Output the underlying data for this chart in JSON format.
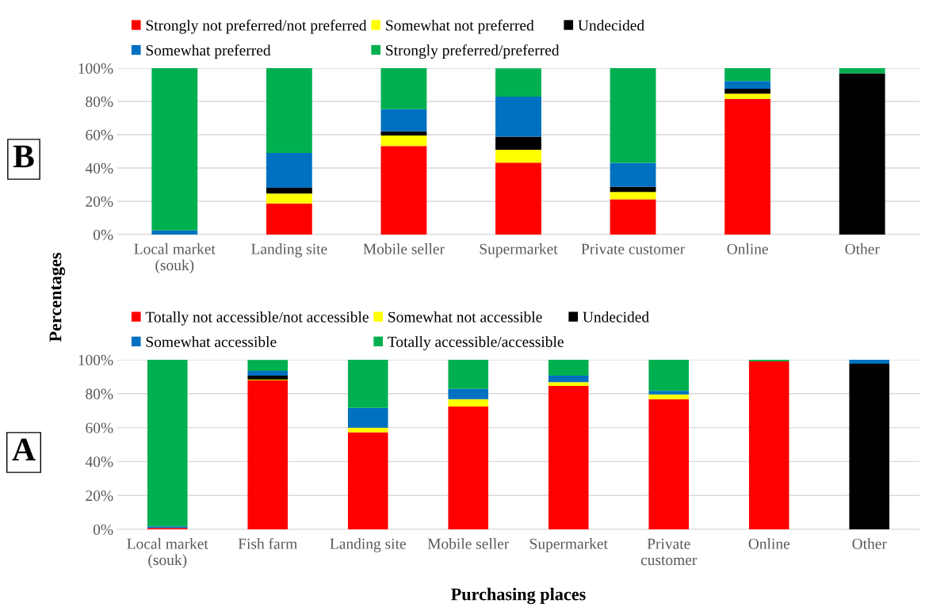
{
  "chart_data": [
    {
      "type": "bar",
      "title": "B",
      "ylabel": "Percentages",
      "stacked": true,
      "legend": "top",
      "grid": "y",
      "categories": [
        "Local market\n(souk)",
        "Landing site",
        "Mobile seller",
        "Supermarket",
        "Private customer",
        "Online",
        "Other"
      ],
      "ylim": [
        0,
        100
      ],
      "yticks": [
        {
          "value": 0,
          "label": "0%"
        },
        {
          "value": 20,
          "label": "20%"
        },
        {
          "value": 40,
          "label": "40%"
        },
        {
          "value": 60,
          "label": "60%"
        },
        {
          "value": 80,
          "label": "80%"
        },
        {
          "value": 100,
          "label": "100%"
        }
      ],
      "series": [
        {
          "name": "Strongly not preferred/not preferred",
          "color": "#ff0000",
          "values": [
            0,
            18.7,
            53.2,
            43.2,
            21.2,
            81.6,
            0
          ]
        },
        {
          "name": "Somewhat not preferred",
          "color": "#ffff00",
          "values": [
            0,
            6,
            6.3,
            7.8,
            4.4,
            3.1,
            0
          ]
        },
        {
          "name": "Undecided",
          "color": "#000000",
          "values": [
            0,
            3.4,
            2.5,
            7.8,
            3.1,
            2.9,
            96.9
          ]
        },
        {
          "name": "Somewhat preferred",
          "color": "#0070c0",
          "values": [
            2.5,
            21,
            13.3,
            24.1,
            14.4,
            4.7,
            0
          ]
        },
        {
          "name": "Strongly preferred/preferred",
          "color": "#00b050",
          "values": [
            97.5,
            51,
            24.7,
            17,
            57,
            7.7,
            3.1
          ]
        }
      ]
    },
    {
      "type": "bar",
      "title": "A",
      "xlabel": "Purchasing places",
      "stacked": true,
      "legend": "top",
      "grid": "y",
      "categories": [
        "Local market\n(souk)",
        "Fish farm",
        "Landing site",
        "Mobile seller",
        "Supermarket",
        "Private\ncustomer",
        "Online",
        "Other"
      ],
      "ylim": [
        0,
        100
      ],
      "yticks": [
        {
          "value": 0,
          "label": "0%"
        },
        {
          "value": 20,
          "label": "20%"
        },
        {
          "value": 40,
          "label": "40%"
        },
        {
          "value": 60,
          "label": "60%"
        },
        {
          "value": 80,
          "label": "80%"
        },
        {
          "value": 100,
          "label": "100%"
        }
      ],
      "series": [
        {
          "name": "Totally not accessible/not accessible",
          "color": "#ff0000",
          "values": [
            0.8,
            87.8,
            57.2,
            72.4,
            84.6,
            76.7,
            99.1,
            0
          ]
        },
        {
          "name": "Somewhat not accessible",
          "color": "#ffff00",
          "values": [
            0,
            0.5,
            2.7,
            4.3,
            2.2,
            2.9,
            0,
            0
          ]
        },
        {
          "name": "Undecided",
          "color": "#000000",
          "values": [
            0,
            2.3,
            0,
            0,
            0,
            0,
            0,
            97.7
          ]
        },
        {
          "name": "Somewhat accessible",
          "color": "#0070c0",
          "values": [
            1,
            2.8,
            11.7,
            6.1,
            3.9,
            2.1,
            0,
            2.3
          ]
        },
        {
          "name": "Totally accessible/accessible",
          "color": "#00b050",
          "values": [
            98.2,
            6.5,
            28.4,
            17.2,
            9.3,
            18.3,
            0.9,
            0
          ]
        }
      ]
    }
  ]
}
